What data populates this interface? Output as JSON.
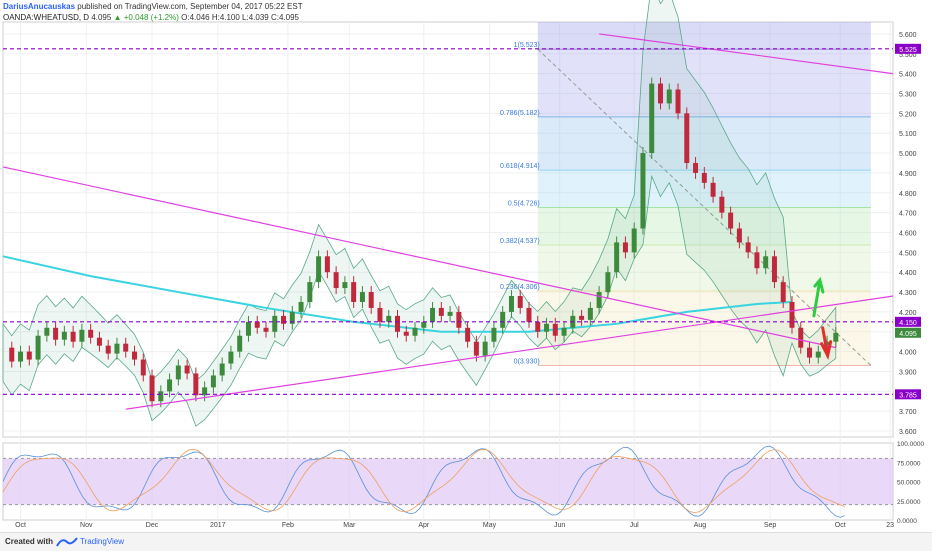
{
  "header": {
    "author": "DariusAnucauskas",
    "published": "published on TradingView.com, September 04, 2017 05:22 EST",
    "symbol": "OANDA:WHEATUSD, D",
    "last": "4.095",
    "change": "+0.048 (+1.2%)",
    "ohlc": "O:4.046 H:4.100 L:4.039 C:4.095"
  },
  "footer": {
    "created_with": "Created with",
    "brand": "TradingView",
    "logo_icon": "tradingview-logo-icon"
  },
  "chart_data": {
    "type": "candlestick",
    "symbol": "OANDA:WHEATUSD",
    "interval": "D",
    "price_axis": {
      "ticks": [
        "5.600",
        "5.500",
        "5.400",
        "5.300",
        "5.200",
        "5.100",
        "5.000",
        "4.900",
        "4.800",
        "4.700",
        "4.600",
        "4.500",
        "4.400",
        "4.300",
        "4.200",
        "4.100",
        "4.000",
        "3.900",
        "3.800",
        "3.700",
        "3.600"
      ],
      "range": [
        3.57,
        5.66
      ]
    },
    "time_axis": {
      "ticks": [
        {
          "label": "Oct",
          "t": 0.02
        },
        {
          "label": "Nov",
          "t": 0.095
        },
        {
          "label": "Dec",
          "t": 0.17
        },
        {
          "label": "2017",
          "t": 0.245
        },
        {
          "label": "Feb",
          "t": 0.325
        },
        {
          "label": "Mar",
          "t": 0.395
        },
        {
          "label": "Apr",
          "t": 0.48
        },
        {
          "label": "May",
          "t": 0.555
        },
        {
          "label": "Jun",
          "t": 0.635
        },
        {
          "label": "Jul",
          "t": 0.72
        },
        {
          "label": "Aug",
          "t": 0.795
        },
        {
          "label": "Sep",
          "t": 0.875
        },
        {
          "label": "Oct",
          "t": 0.955
        },
        {
          "label": "23",
          "t": 1.012
        }
      ]
    },
    "price_series": [
      [
        0,
        4.02
      ],
      [
        0.01,
        3.95
      ],
      [
        0.02,
        4.0
      ],
      [
        0.03,
        3.96
      ],
      [
        0.04,
        4.08
      ],
      [
        0.05,
        4.12
      ],
      [
        0.06,
        4.06
      ],
      [
        0.07,
        4.1
      ],
      [
        0.08,
        4.05
      ],
      [
        0.09,
        4.11
      ],
      [
        0.1,
        4.07
      ],
      [
        0.11,
        4.03
      ],
      [
        0.12,
        3.99
      ],
      [
        0.13,
        4.04
      ],
      [
        0.14,
        4.0
      ],
      [
        0.15,
        3.96
      ],
      [
        0.16,
        3.88
      ],
      [
        0.17,
        3.75
      ],
      [
        0.18,
        3.8
      ],
      [
        0.19,
        3.86
      ],
      [
        0.2,
        3.93
      ],
      [
        0.21,
        3.89
      ],
      [
        0.22,
        3.78
      ],
      [
        0.23,
        3.82
      ],
      [
        0.24,
        3.88
      ],
      [
        0.25,
        3.94
      ],
      [
        0.26,
        4.0
      ],
      [
        0.27,
        4.08
      ],
      [
        0.28,
        4.15
      ],
      [
        0.29,
        4.12
      ],
      [
        0.3,
        4.1
      ],
      [
        0.31,
        4.18
      ],
      [
        0.32,
        4.14
      ],
      [
        0.33,
        4.2
      ],
      [
        0.34,
        4.25
      ],
      [
        0.35,
        4.35
      ],
      [
        0.36,
        4.48
      ],
      [
        0.37,
        4.4
      ],
      [
        0.38,
        4.32
      ],
      [
        0.39,
        4.35
      ],
      [
        0.4,
        4.25
      ],
      [
        0.41,
        4.3
      ],
      [
        0.42,
        4.22
      ],
      [
        0.43,
        4.15
      ],
      [
        0.44,
        4.18
      ],
      [
        0.45,
        4.1
      ],
      [
        0.46,
        4.08
      ],
      [
        0.47,
        4.12
      ],
      [
        0.48,
        4.15
      ],
      [
        0.49,
        4.22
      ],
      [
        0.5,
        4.18
      ],
      [
        0.51,
        4.2
      ],
      [
        0.52,
        4.12
      ],
      [
        0.53,
        4.05
      ],
      [
        0.54,
        3.98
      ],
      [
        0.55,
        4.05
      ],
      [
        0.56,
        4.12
      ],
      [
        0.57,
        4.2
      ],
      [
        0.58,
        4.28
      ],
      [
        0.59,
        4.22
      ],
      [
        0.6,
        4.15
      ],
      [
        0.61,
        4.1
      ],
      [
        0.62,
        4.14
      ],
      [
        0.63,
        4.08
      ],
      [
        0.64,
        4.12
      ],
      [
        0.65,
        4.18
      ],
      [
        0.66,
        4.16
      ],
      [
        0.67,
        4.22
      ],
      [
        0.68,
        4.3
      ],
      [
        0.69,
        4.4
      ],
      [
        0.7,
        4.55
      ],
      [
        0.71,
        4.5
      ],
      [
        0.72,
        4.62
      ],
      [
        0.73,
        5.0
      ],
      [
        0.74,
        5.35
      ],
      [
        0.75,
        5.25
      ],
      [
        0.76,
        5.32
      ],
      [
        0.77,
        5.2
      ],
      [
        0.78,
        4.95
      ],
      [
        0.79,
        4.9
      ],
      [
        0.8,
        4.85
      ],
      [
        0.81,
        4.78
      ],
      [
        0.82,
        4.7
      ],
      [
        0.83,
        4.62
      ],
      [
        0.84,
        4.55
      ],
      [
        0.85,
        4.5
      ],
      [
        0.86,
        4.42
      ],
      [
        0.87,
        4.48
      ],
      [
        0.88,
        4.35
      ],
      [
        0.89,
        4.25
      ],
      [
        0.9,
        4.12
      ],
      [
        0.91,
        4.02
      ],
      [
        0.92,
        3.97
      ],
      [
        0.93,
        4.0
      ],
      [
        0.94,
        4.05
      ],
      [
        0.95,
        4.095
      ]
    ],
    "fibonacci": {
      "levels": [
        {
          "label": "1(5.523)",
          "value": 5.523
        },
        {
          "label": "0.786(5.182)",
          "value": 5.182
        },
        {
          "label": "0.618(4.914)",
          "value": 4.914
        },
        {
          "label": "0.5(4.726)",
          "value": 4.726
        },
        {
          "label": "0.382(4.537)",
          "value": 4.537
        },
        {
          "label": "0.236(4.306)",
          "value": 4.306
        },
        {
          "label": "0(3.930)",
          "value": 3.93
        }
      ],
      "colors": [
        "#9598e8",
        "#7fb4e6",
        "#8fd3f5",
        "#a6e3a6",
        "#c9ebb0",
        "#f2e6b0",
        "#f5b5b5"
      ]
    },
    "horizontal_levels": [
      {
        "label": "5.525",
        "value": 5.525
      },
      {
        "label": "4.150",
        "value": 4.15
      },
      {
        "label": "3.785",
        "value": 3.785
      }
    ],
    "current_price": {
      "label": "4.095",
      "value": 4.095
    },
    "level_color": "#8b00c8",
    "trendline_color": "#e040e0",
    "ma_color": "#39d4e0",
    "bb_color": "#5aa88a",
    "up_color": "#3d8a3d",
    "down_color": "#c0283c",
    "stochastic": {
      "ticks": [
        "100.0000",
        "75.0000",
        "50.0000",
        "25.0000",
        "0.0000"
      ],
      "range": [
        0,
        100
      ],
      "upper": 80,
      "lower": 20,
      "fill_color": "#e0c8f5",
      "k_color": "#5b8fd6",
      "d_color": "#f0a060"
    }
  }
}
